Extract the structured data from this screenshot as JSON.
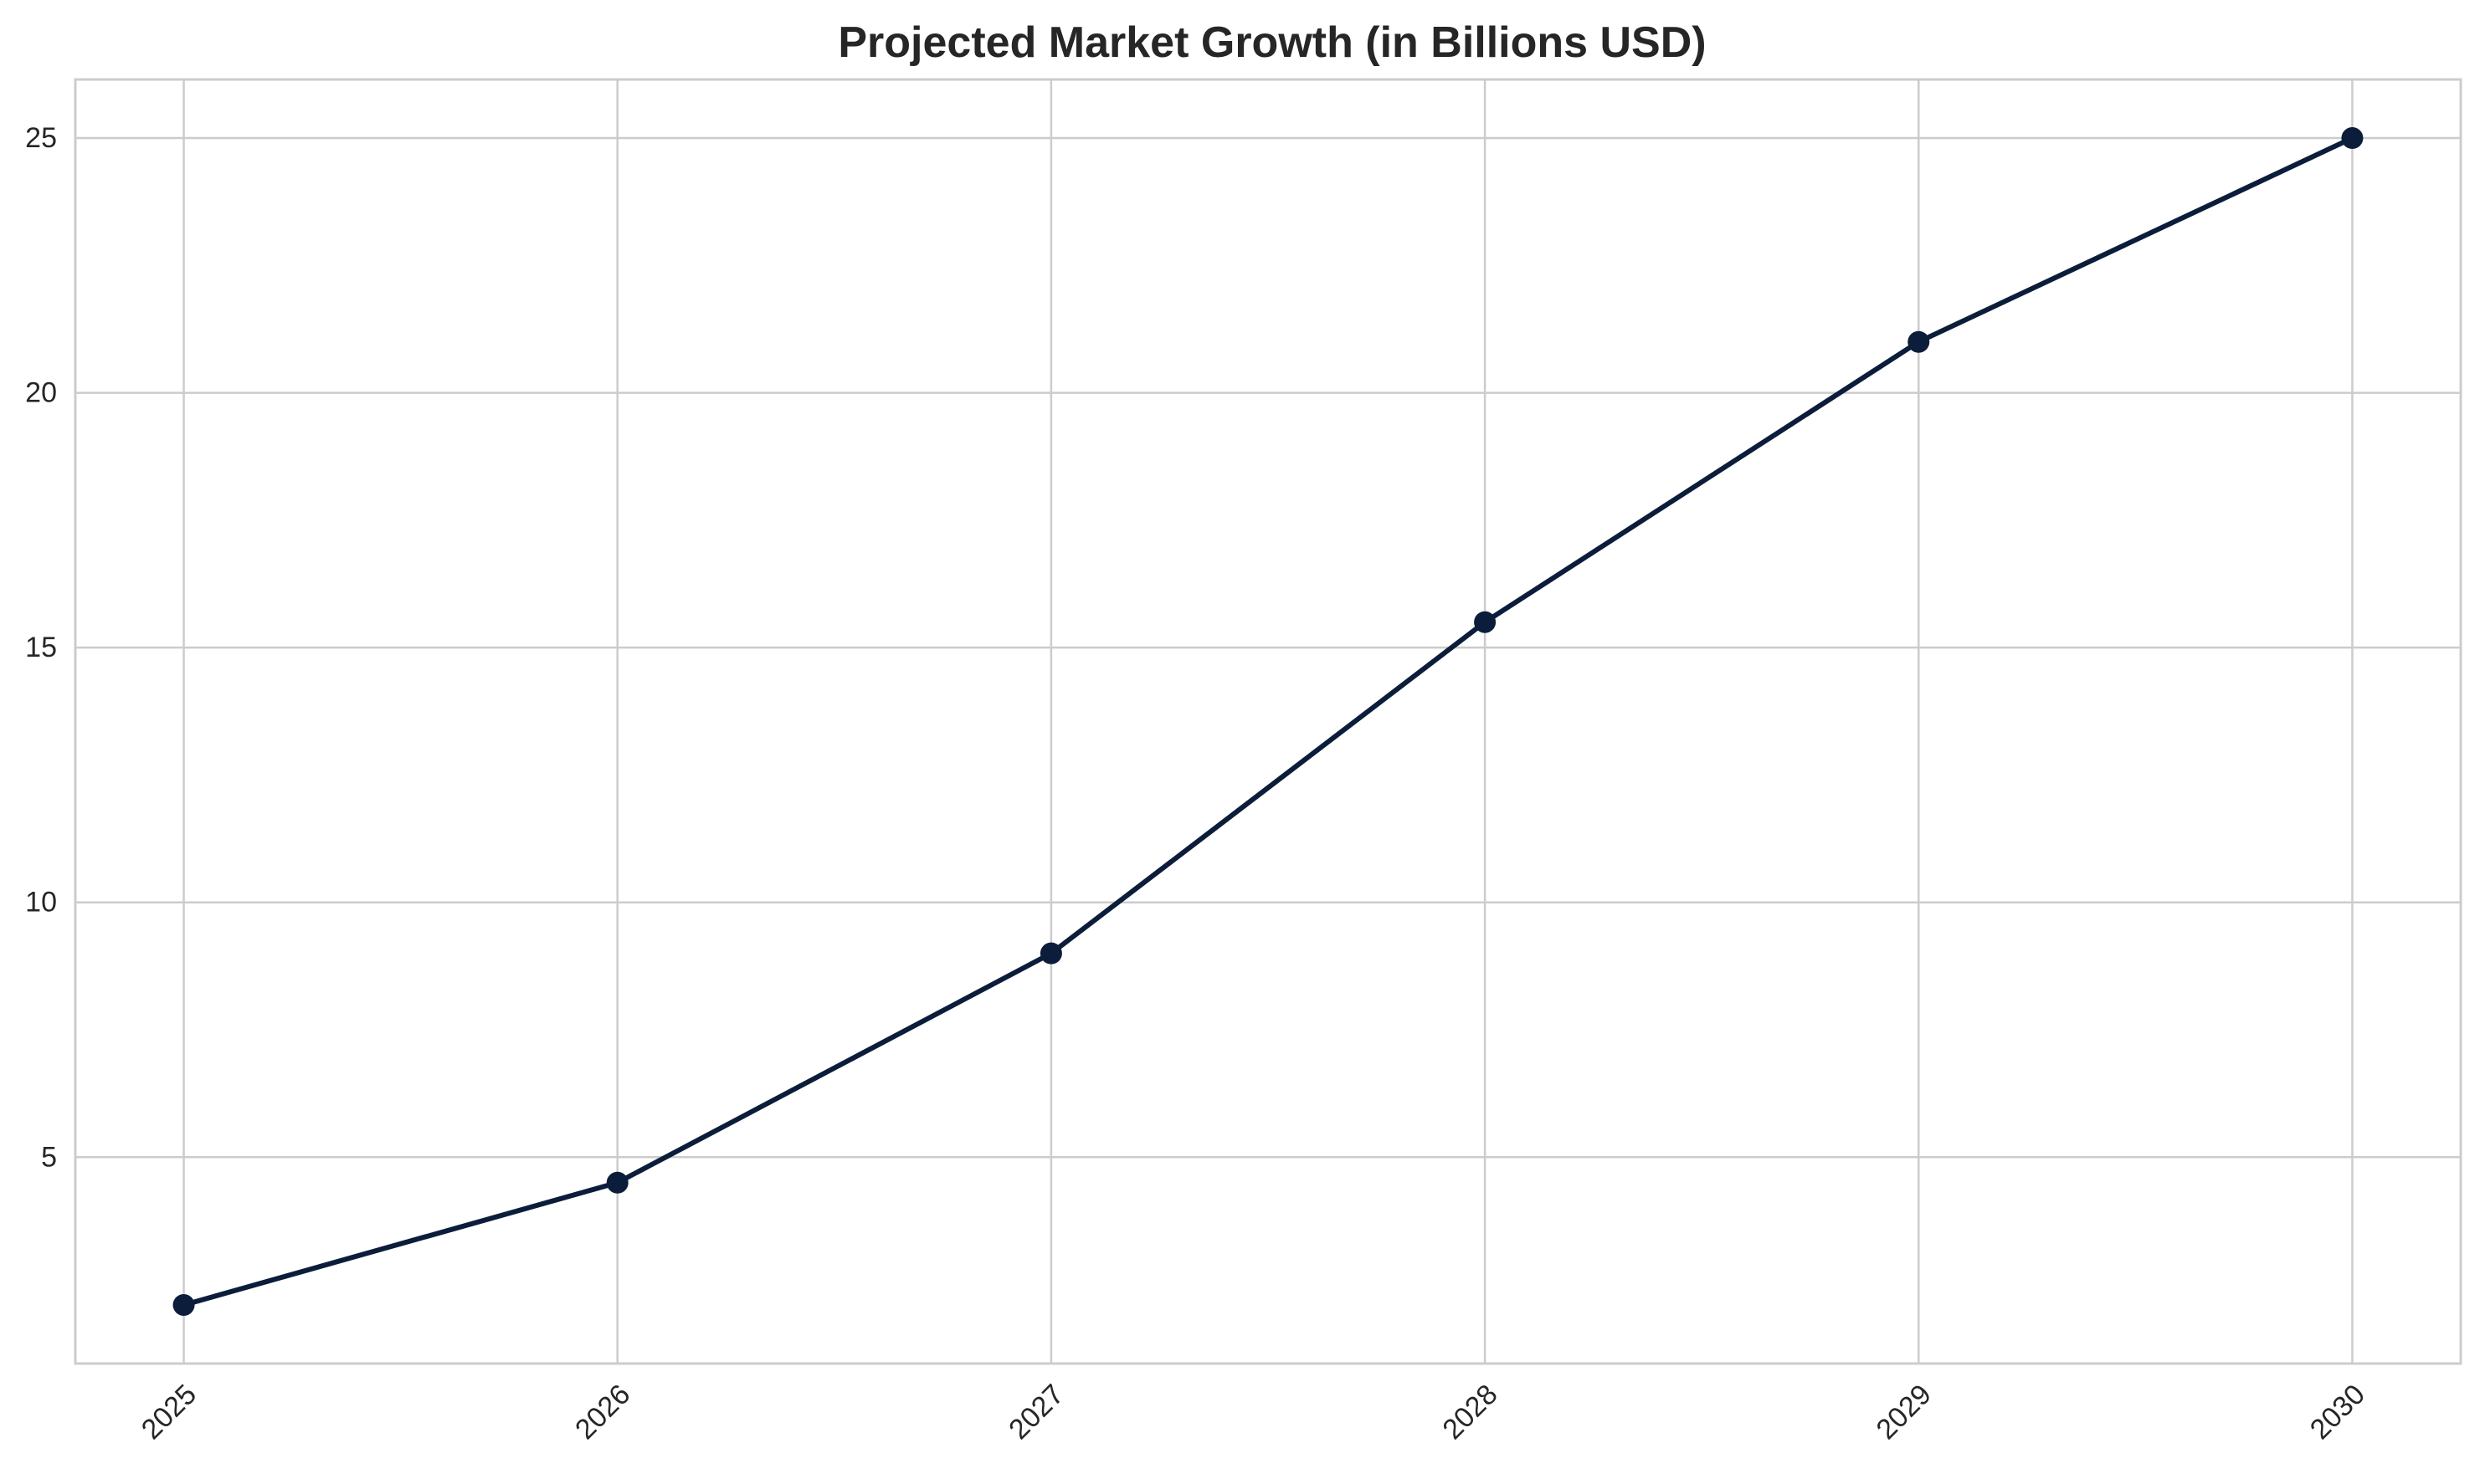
{
  "chart_data": {
    "type": "line",
    "title": "Projected Market Growth (in Billions USD)",
    "xlabel": "",
    "ylabel": "",
    "x": [
      2025,
      2026,
      2027,
      2028,
      2029,
      2030
    ],
    "x_tick_labels": [
      "2025",
      "2026",
      "2027",
      "2028",
      "2029",
      "2030"
    ],
    "x_tick_rotation_deg": 45,
    "series": [
      {
        "values": [
          2.1,
          4.5,
          9.0,
          15.5,
          21.0,
          25.0
        ],
        "color": "#0b1d3a",
        "marker": "circle"
      }
    ],
    "xlim": [
      2024.75,
      2030.25
    ],
    "ylim": [
      0.95,
      26.15
    ],
    "y_ticks": [
      5,
      10,
      15,
      20,
      25
    ],
    "y_tick_labels": [
      "5",
      "10",
      "15",
      "20",
      "25"
    ],
    "grid": true,
    "legend": "none",
    "colors": {
      "line": "#0b1d3a",
      "grid": "#cccccc",
      "frame": "#cccccc",
      "background": "#ffffff",
      "text": "#262626"
    }
  }
}
